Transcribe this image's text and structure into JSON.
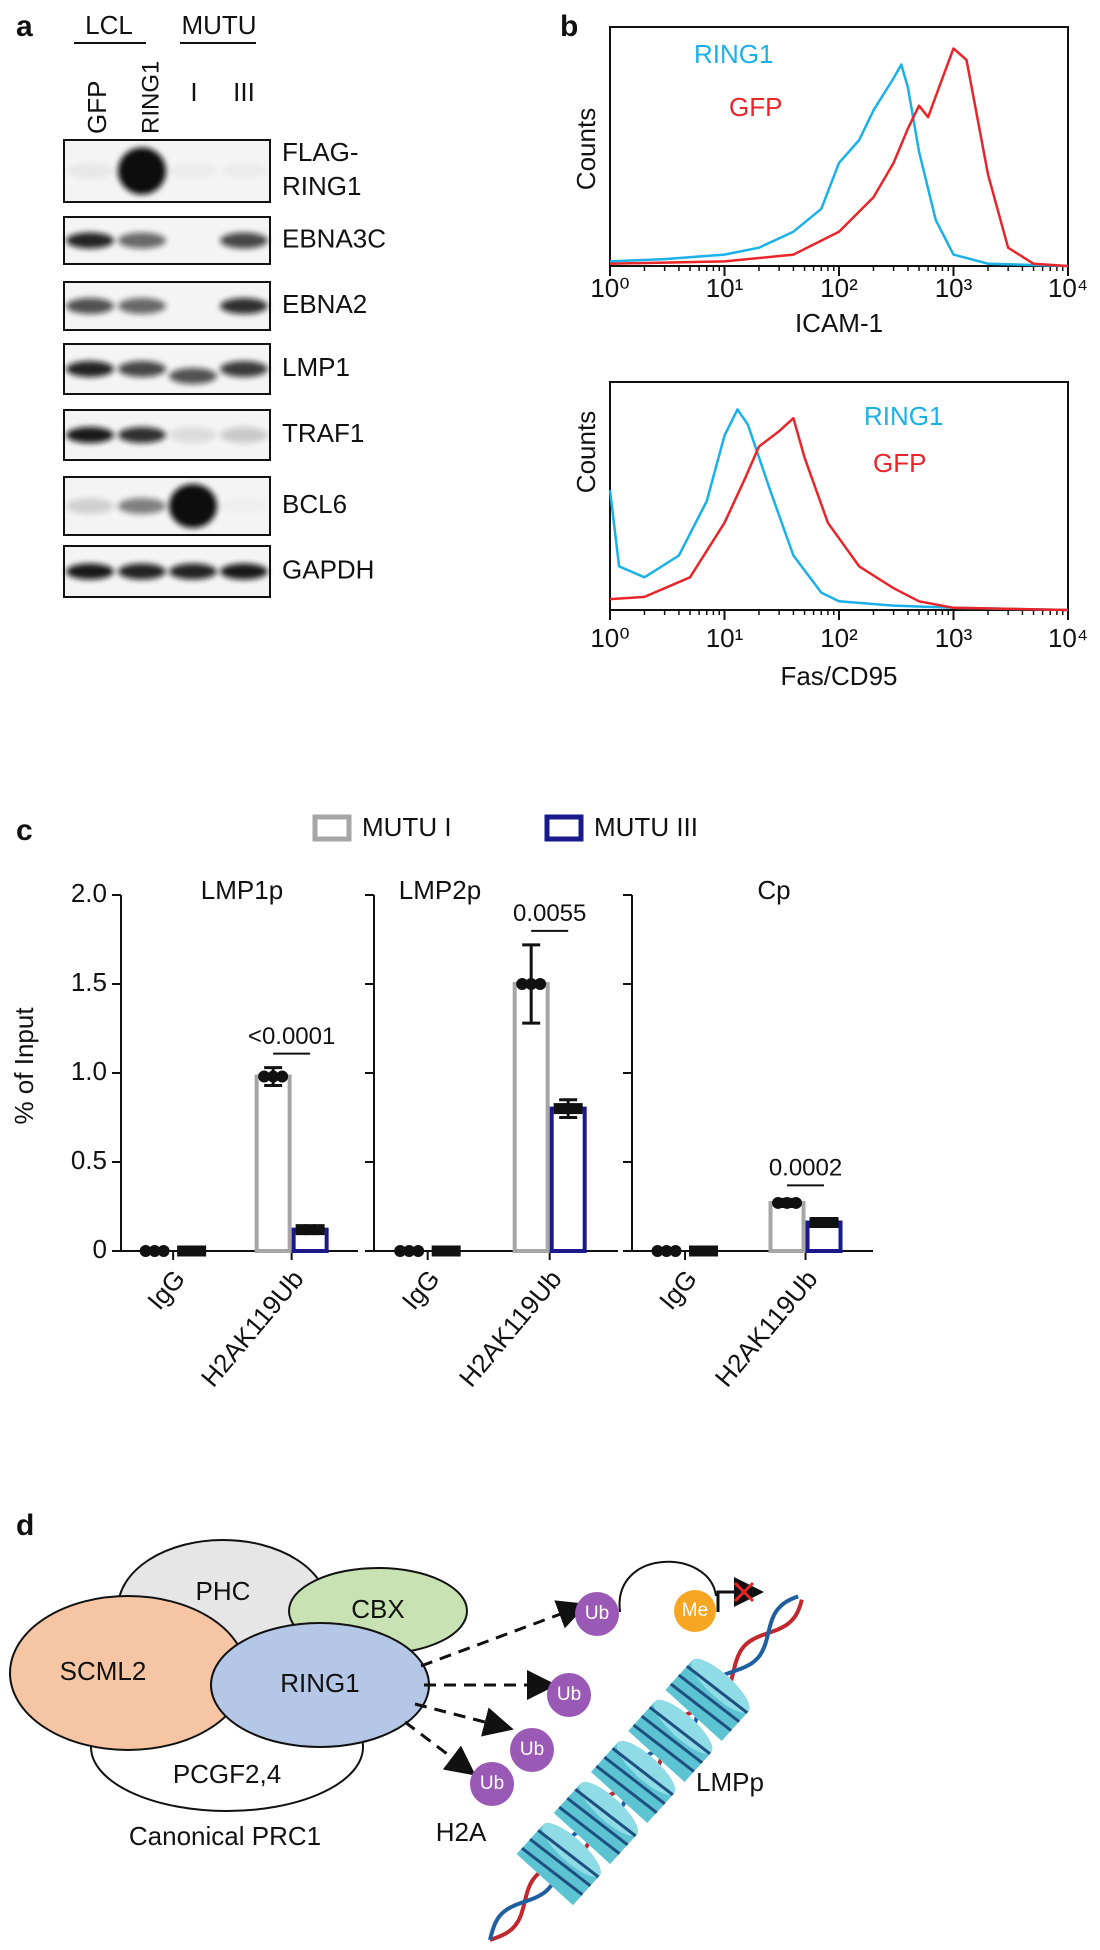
{
  "panel_labels": [
    "a",
    "b",
    "c",
    "d"
  ],
  "western_blot": {
    "groups": [
      "LCL",
      "MUTU"
    ],
    "lanes": [
      "GFP",
      "RING1",
      "I",
      "III"
    ],
    "rows": [
      [
        "FLAG-",
        "RING1"
      ],
      [
        "EBNA3C"
      ],
      [
        "EBNA2"
      ],
      [
        "LMP1"
      ],
      [
        "TRAF1"
      ],
      [
        "BCL6"
      ],
      [
        "GAPDH"
      ]
    ]
  },
  "chart_data": [
    {
      "type": "line",
      "xlabel": "ICAM-1",
      "ylabel": "Counts",
      "xscale": "log",
      "xlim": [
        1,
        10000
      ],
      "ylim": [
        0,
        100
      ],
      "xticks": [
        {
          "value": 1,
          "label": "10⁰"
        },
        {
          "value": 10,
          "label": "10¹"
        },
        {
          "value": 100,
          "label": "10²"
        },
        {
          "value": 1000,
          "label": "10³"
        },
        {
          "value": 10000,
          "label": "10⁴"
        }
      ],
      "series": [
        {
          "name": "RING1",
          "color": "#1ab0e8",
          "x": [
            1,
            3,
            10,
            20,
            40,
            70,
            100,
            150,
            200,
            300,
            350,
            400,
            500,
            700,
            1000,
            2000,
            10000
          ],
          "values": [
            2,
            3,
            5,
            8,
            15,
            25,
            45,
            55,
            68,
            82,
            88,
            78,
            50,
            20,
            5,
            1,
            0
          ]
        },
        {
          "name": "GFP",
          "color": "#e8262a",
          "x": [
            1,
            10,
            40,
            100,
            200,
            300,
            400,
            500,
            600,
            800,
            1000,
            1300,
            2000,
            3000,
            5000,
            10000
          ],
          "values": [
            1,
            2,
            5,
            15,
            30,
            45,
            60,
            70,
            65,
            82,
            95,
            90,
            40,
            8,
            1,
            0
          ]
        }
      ]
    },
    {
      "type": "line",
      "xlabel": "Fas/CD95",
      "ylabel": "Counts",
      "xscale": "log",
      "xlim": [
        1,
        10000
      ],
      "ylim": [
        0,
        100
      ],
      "xticks": [
        {
          "value": 1,
          "label": "10⁰"
        },
        {
          "value": 10,
          "label": "10¹"
        },
        {
          "value": 100,
          "label": "10²"
        },
        {
          "value": 1000,
          "label": "10³"
        },
        {
          "value": 10000,
          "label": "10⁴"
        }
      ],
      "series": [
        {
          "name": "RING1",
          "color": "#1ab0e8",
          "x": [
            1,
            1.2,
            2,
            4,
            7,
            10,
            13,
            16,
            25,
            40,
            70,
            100,
            300,
            1000,
            10000
          ],
          "values": [
            55,
            20,
            15,
            25,
            50,
            80,
            92,
            85,
            55,
            25,
            8,
            4,
            2,
            1,
            0
          ]
        },
        {
          "name": "GFP",
          "color": "#e8262a",
          "x": [
            1,
            2,
            5,
            10,
            15,
            20,
            30,
            40,
            50,
            80,
            150,
            300,
            500,
            1000,
            10000
          ],
          "values": [
            5,
            6,
            15,
            40,
            60,
            75,
            82,
            88,
            70,
            40,
            20,
            10,
            4,
            1,
            0
          ]
        }
      ]
    },
    {
      "type": "bar",
      "title": "LMP1p",
      "ylabel": "% of Input",
      "categories": [
        "IgG",
        "H2AK119Ub"
      ],
      "ylim": [
        0,
        2
      ],
      "yticks": [
        0,
        0.5,
        {
          "value": 1,
          "label": "1.0"
        },
        1.5,
        {
          "value": 2,
          "label": "2.0"
        }
      ],
      "annotation": "<0.0001",
      "series": [
        {
          "name": "MUTU I",
          "color": "#a6a6a6",
          "values": [
            0,
            0.98
          ],
          "errors": [
            0,
            0.05
          ]
        },
        {
          "name": "MUTU III",
          "color": "#1a1a8c",
          "values": [
            0,
            0.12
          ],
          "errors": [
            0,
            0.02
          ]
        }
      ]
    },
    {
      "type": "bar",
      "title": "LMP2p",
      "categories": [
        "IgG",
        "H2AK119Ub"
      ],
      "ylim": [
        0,
        2
      ],
      "annotation": "0.0055",
      "series": [
        {
          "color": "#a6a6a6",
          "values": [
            0,
            1.5
          ],
          "errors": [
            0,
            0.22
          ]
        },
        {
          "color": "#1a1a8c",
          "values": [
            0,
            0.8
          ],
          "errors": [
            0,
            0.05
          ]
        }
      ]
    },
    {
      "type": "bar",
      "title": "Cp",
      "categories": [
        "IgG",
        "H2AK119Ub"
      ],
      "ylim": [
        0,
        2
      ],
      "annotation": "0.0002",
      "series": [
        {
          "color": "#a6a6a6",
          "values": [
            0,
            0.27
          ],
          "errors": [
            0,
            0.02
          ]
        },
        {
          "color": "#1a1a8c",
          "values": [
            0,
            0.16
          ],
          "errors": [
            0,
            0.02
          ]
        }
      ]
    }
  ],
  "diagram": {
    "complexes": [
      "PHC",
      "CBX",
      "SCML2",
      "RING1",
      "PCGF2,4"
    ],
    "complex_name": "Canonical PRC1",
    "ub": [
      "Ub",
      "Ub",
      "Ub",
      "Ub"
    ],
    "me": "Me",
    "h2a": "H2A",
    "promoter": "LMPp"
  }
}
